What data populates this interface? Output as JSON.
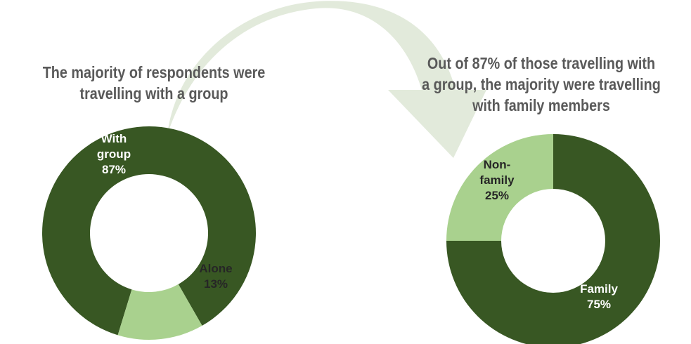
{
  "colors": {
    "dark_green": "#385723",
    "light_green": "#a9d18e",
    "arrow": "#e2eadb",
    "title_gray": "#595959",
    "label_white": "#ffffff",
    "label_dark": "#262626"
  },
  "titles": {
    "left": [
      "The majority of respondents were",
      "travelling with a group"
    ],
    "right": [
      "Out of 87% of those travelling with",
      "a group, the majority were travelling",
      "with family members"
    ]
  },
  "chart_data": [
    {
      "type": "pie",
      "donut": true,
      "title": "The majority of respondents were travelling with a group",
      "slices": [
        {
          "label": [
            "With",
            "group",
            "87%"
          ],
          "value": 87,
          "color": "#385723",
          "text_color": "#ffffff"
        },
        {
          "label": [
            "Alone",
            "13%"
          ],
          "value": 13,
          "color": "#a9d18e",
          "text_color": "#262626"
        }
      ]
    },
    {
      "type": "pie",
      "donut": true,
      "title": "Out of 87% of those travelling with a group, the majority were travelling with family members",
      "slices": [
        {
          "label": [
            "Family",
            "75%"
          ],
          "value": 75,
          "color": "#385723",
          "text_color": "#ffffff"
        },
        {
          "label": [
            "Non-",
            "family",
            "25%"
          ],
          "value": 25,
          "color": "#a9d18e",
          "text_color": "#262626"
        }
      ]
    }
  ]
}
